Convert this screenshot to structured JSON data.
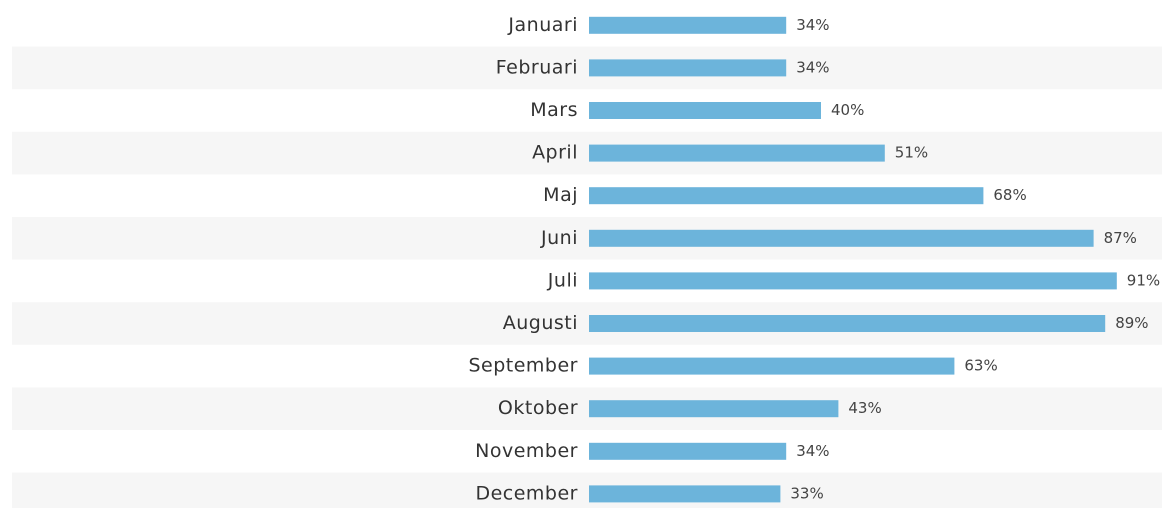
{
  "chart_data": {
    "type": "bar",
    "orientation": "horizontal",
    "categories": [
      "Januari",
      "Februari",
      "Mars",
      "April",
      "Maj",
      "Juni",
      "Juli",
      "Augusti",
      "September",
      "Oktober",
      "November",
      "December"
    ],
    "values": [
      34,
      34,
      40,
      51,
      68,
      87,
      91,
      89,
      63,
      43,
      34,
      33
    ],
    "value_labels": [
      "34%",
      "34%",
      "40%",
      "51%",
      "68%",
      "87%",
      "91%",
      "89%",
      "63%",
      "43%",
      "34%",
      "33%"
    ],
    "color": "#6cb4db",
    "xlim": [
      0,
      100
    ]
  }
}
